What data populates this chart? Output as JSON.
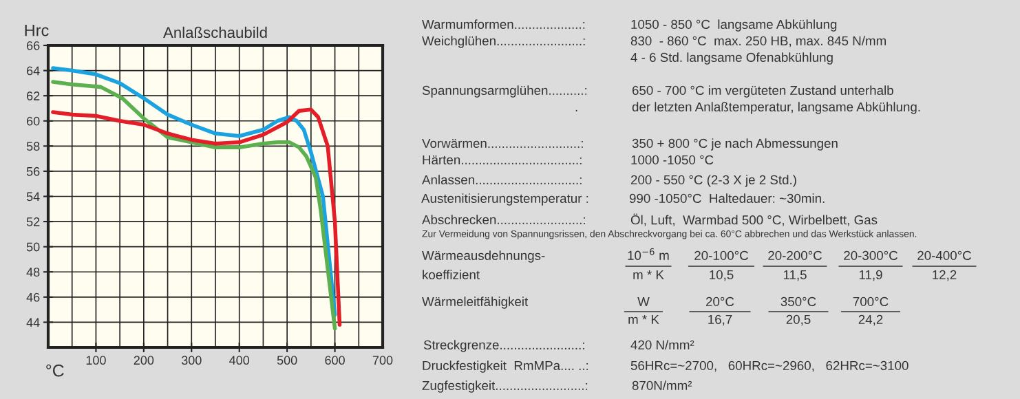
{
  "chart_data": [
    {
      "type": "line",
      "title": "Anlaßschaubild",
      "xlabel": "°C",
      "ylabel": "Hrc",
      "xlim": [
        0,
        700
      ],
      "ylim": [
        42,
        66
      ],
      "xticks": [
        {
          "value": 50,
          "label": null
        },
        100,
        {
          "value": 150,
          "label": null
        },
        200,
        {
          "value": 250,
          "label": null
        },
        300,
        {
          "value": 350,
          "label": null
        },
        400,
        {
          "value": 450,
          "label": null
        },
        500,
        {
          "value": 550,
          "label": null
        },
        600,
        {
          "value": 650,
          "label": null
        },
        700
      ],
      "yticks": [
        44,
        46,
        48,
        50,
        52,
        54,
        56,
        58,
        60,
        62,
        64,
        66
      ],
      "grid": true,
      "legend": false,
      "marker": "none",
      "line_style": "solid",
      "series": [
        {
          "color": "#1aa3e0",
          "x": [
            10,
            50,
            100,
            150,
            200,
            250,
            300,
            350,
            400,
            450,
            480,
            505,
            520,
            535,
            550,
            575,
            600
          ],
          "values": [
            64.2,
            64.0,
            63.7,
            63.0,
            61.8,
            60.5,
            59.7,
            59.0,
            58.8,
            59.3,
            60.0,
            60.3,
            60.0,
            59.3,
            57.5,
            54.0,
            44.6
          ]
        },
        {
          "color": "#5cb050",
          "x": [
            10,
            50,
            110,
            155,
            200,
            250,
            300,
            350,
            400,
            450,
            480,
            505,
            525,
            540,
            560,
            570,
            600
          ],
          "values": [
            63.1,
            62.9,
            62.7,
            61.8,
            60.2,
            58.7,
            58.3,
            57.9,
            57.9,
            58.2,
            58.3,
            58.3,
            57.9,
            57.2,
            55.5,
            53.0,
            43.5
          ]
        },
        {
          "color": "#e31e28",
          "x": [
            10,
            50,
            100,
            150,
            200,
            250,
            300,
            350,
            400,
            450,
            500,
            525,
            550,
            565,
            585,
            600,
            610
          ],
          "values": [
            60.7,
            60.5,
            60.4,
            60.0,
            59.7,
            59.0,
            58.5,
            58.2,
            58.3,
            58.9,
            59.9,
            60.8,
            60.9,
            60.3,
            58.0,
            52.0,
            43.8
          ]
        }
      ]
    },
    {
      "type": "other",
      "annotations": [
        "Warmumformen...................:",
        "1050 - 850 °C  langsame Abkühlung",
        "Weichglühen........................:",
        "830  - 860 °C  max. 250 HB, max. 845 N/mm",
        "4 - 6 Std. langsame Ofenabkühlung",
        "Spannungsarmglühen..........:",
        "650 - 700 °C im vergüteten Zustand unterhalb",
        ".",
        "der letzten Anlaßtemperatur, langsame Abkühlung.",
        "Vorwärmen..........................:",
        "350 + 800 °C je nach Abmessungen",
        "Härten.................................:",
        "1000 -1050 °C",
        "Anlassen.............................:",
        "200 - 550 °C (2-3 X je 2 Std.)",
        "Austenitisierungstemperatur :",
        "990 -1050°C  Haltedauer: ~30min.",
        "Abschrecken........................:",
        "Öl, Luft,  Warmbad 500 °C, Wirbelbett, Gas",
        "Zur Vermeidung von Spannungsrissen, den Abschreckvorgang bei ca. 60°C abbrechen und das Werkstück anlassen.",
        "Wärmeausdehnungs-",
        "koeffizient",
        "10$^{−6}$ m",
        "m * K",
        "20-100°C",
        "10,5",
        "20-200°C",
        "11,5",
        "20-300°C",
        "11,9",
        "20-400°C",
        "12,2",
        "Wärmeleitfähigkeit",
        "W",
        "m * K",
        "20°C",
        "16,7",
        "350°C",
        "20,5",
        "700°C",
        "24,2",
        "Streckgrenze.......................:",
        "420 N/mm²",
        "Druckfestigkeit  RmMPa.... ..:",
        "56HRc=~2700,   60HRc=~2960,   62HRc=~3100",
        "Zugfestigkeit.........................:",
        "870N/mm²"
      ]
    }
  ]
}
